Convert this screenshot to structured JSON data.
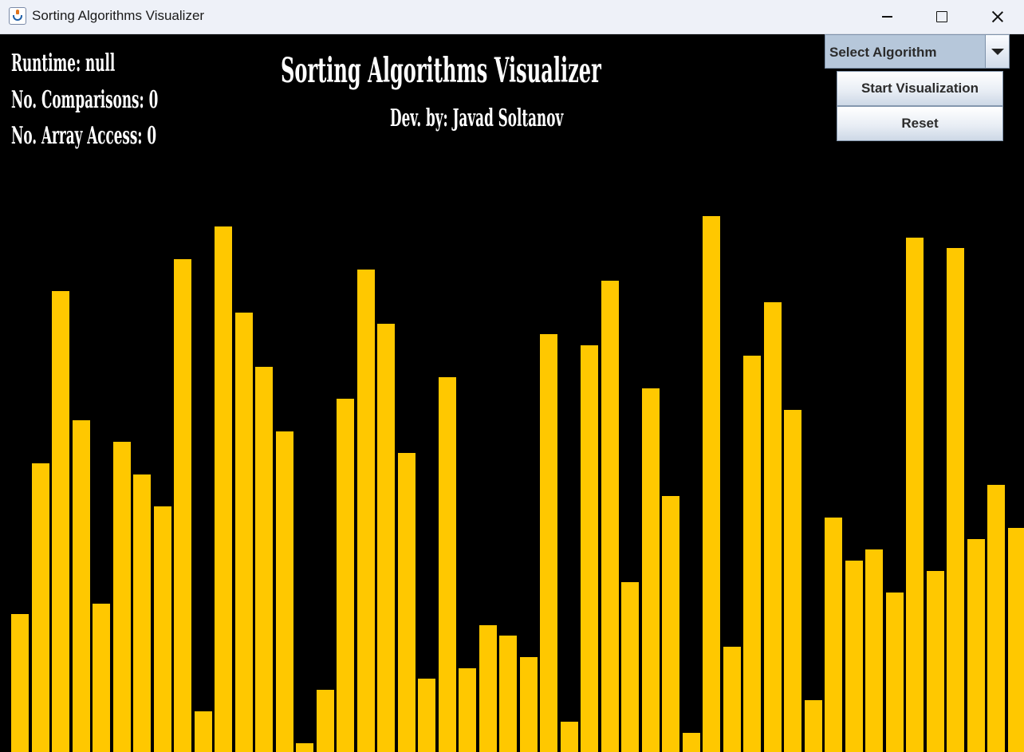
{
  "window": {
    "title": "Sorting Algorithms Visualizer"
  },
  "stats": {
    "runtime": "Runtime: null",
    "comparisons": "No. Comparisons: 0",
    "array_access": "No. Array Access: 0"
  },
  "header": {
    "title": "Sorting Algorithms Visualizer",
    "credit": "Dev. by: Javad Soltanov"
  },
  "controls": {
    "algorithm_select": "Select Algorithm",
    "start_label": "Start Visualization",
    "reset_label": "Reset"
  },
  "colors": {
    "bar": "#ffc800",
    "background": "#000000"
  },
  "array_values": [
    173,
    362,
    578,
    416,
    186,
    389,
    348,
    308,
    618,
    51,
    659,
    551,
    483,
    402,
    11,
    78,
    443,
    605,
    537,
    375,
    92,
    470,
    105,
    159,
    146,
    119,
    524,
    38,
    510,
    591,
    213,
    456,
    321,
    24,
    672,
    132,
    497,
    564,
    429,
    65,
    294,
    240,
    254,
    200,
    645,
    227,
    632,
    267,
    335,
    281
  ]
}
